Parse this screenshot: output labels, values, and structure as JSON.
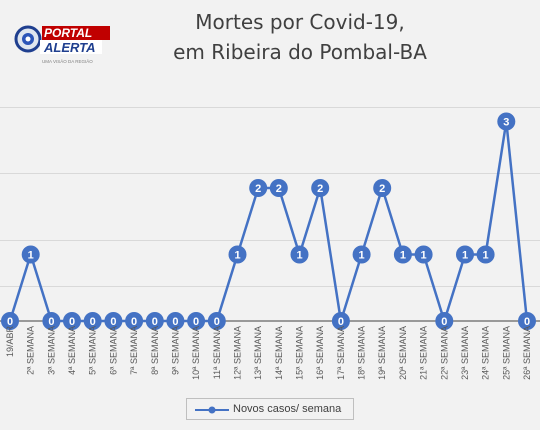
{
  "logo": {
    "line1": "PORTAL",
    "line2": "ALERTA",
    "tagline": "UMA VISÃO DA REGIÃO"
  },
  "chart_data": {
    "type": "line",
    "title": "Mortes por Covid-19,",
    "subtitle": "em Ribeira do Pombal-BA",
    "categories": [
      "19/ABR",
      "2ª SEMANA",
      "3ª SEMANA",
      "4ª SEMANA",
      "5ª SEMANA",
      "6ª SEMANA",
      "7ª SEMANA",
      "8ª SEMANA",
      "9ª SEMANA",
      "10ª SEMANA",
      "11ª SEMANA",
      "12ª SEMANA",
      "13ª SEMANA",
      "14ª SEMANA",
      "15ª SEMANA",
      "16ª SEMANA",
      "17ª SEMANA",
      "18ª SEMANA",
      "19ª SEMANA",
      "20ª SEMANA",
      "21ª SEMANA",
      "22ª SEMANA",
      "23ª SEMANA",
      "24ª SEMANA",
      "25ª SEMANA",
      "26ª SEMANA"
    ],
    "series": [
      {
        "name": "Novos casos/ semana",
        "values": [
          0,
          1,
          0,
          0,
          0,
          0,
          0,
          0,
          0,
          0,
          0,
          1,
          2,
          2,
          1,
          2,
          0,
          1,
          2,
          1,
          1,
          0,
          1,
          1,
          3,
          0
        ]
      }
    ],
    "ylim": [
      0,
      3.2
    ],
    "grid": true,
    "legend_position": "bottom",
    "colors": {
      "line": "#4472c4",
      "label_text": "#ffffff",
      "grid": "#d9d9d9",
      "axis": "#404040"
    }
  }
}
